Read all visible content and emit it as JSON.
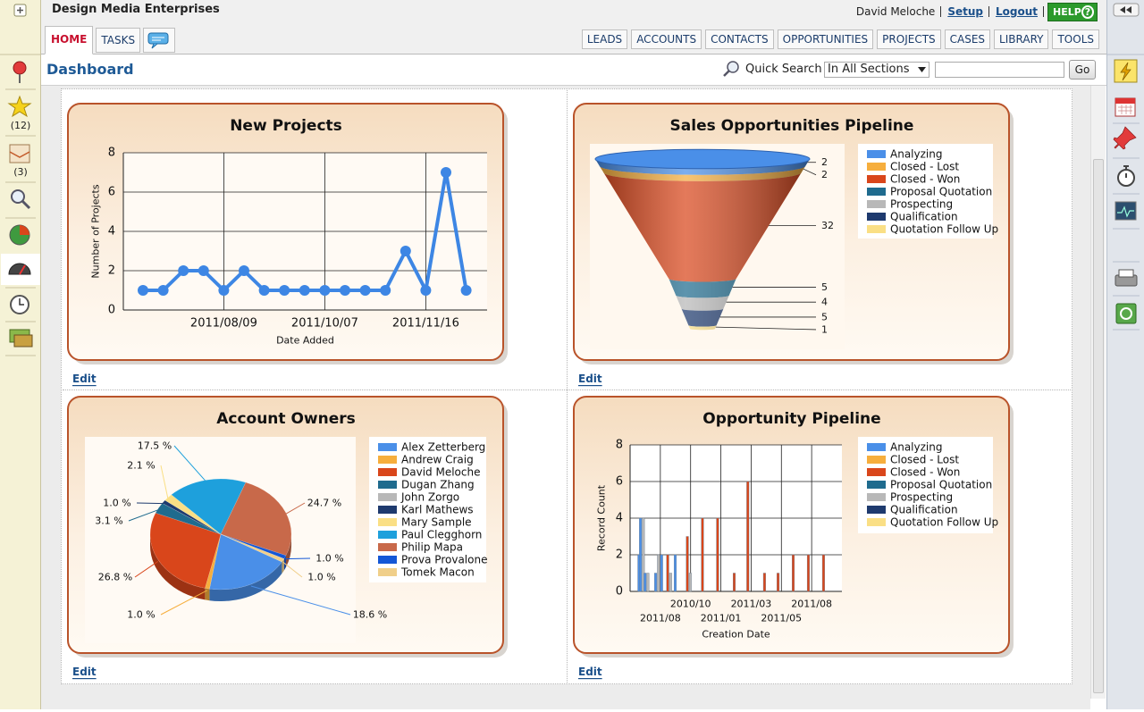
{
  "header": {
    "company": "Design Media Enterprises",
    "user": "David Meloche",
    "links": [
      "Setup",
      "Logout"
    ],
    "help": "HELP",
    "help_icon": "?"
  },
  "tabs": {
    "left": [
      "HOME",
      "TASKS"
    ],
    "right": [
      "LEADS",
      "ACCOUNTS",
      "CONTACTS",
      "OPPORTUNITIES",
      "PROJECTS",
      "CASES",
      "LIBRARY",
      "TOOLS"
    ]
  },
  "sidebar": {
    "badges": [
      "(12)",
      "(3)"
    ]
  },
  "page": {
    "title": "Dashboard",
    "search_label": "Quick Search",
    "search_scope": "In All Sections",
    "search_button": "Go"
  },
  "widgets": [
    {
      "edit": "Edit",
      "chart_data": {
        "type": "line",
        "title": "New Projects",
        "y_label": "Number of Projects",
        "x_label": "Date Added",
        "categories": [
          null,
          null,
          null,
          null,
          "2011/08/09",
          null,
          null,
          null,
          null,
          "2011/10/07",
          null,
          null,
          null,
          null,
          "2011/11/16",
          null,
          null
        ],
        "values": [
          1,
          1,
          2,
          2,
          1,
          2,
          1,
          1,
          1,
          1,
          1,
          1,
          1,
          3,
          1,
          7,
          1
        ],
        "color": "#3d86e4",
        "ylim": [
          0,
          8
        ],
        "yticks": [
          0,
          2,
          4,
          6,
          8
        ],
        "grid": true
      }
    },
    {
      "edit": "Edit",
      "chart_data": {
        "type": "funnel",
        "title": "Sales Opportunities Pipeline",
        "categories": [
          "Analyzing",
          "Closed - Lost",
          "Closed - Won",
          "Proposal Quotation",
          "Prospecting",
          "Qualification",
          "Quotation Follow Up"
        ],
        "values": [
          2,
          2,
          32,
          5,
          4,
          5,
          1
        ],
        "colors": [
          "#4a8fe8",
          "#f6ae3d",
          "#d9461b",
          "#1f6b8e",
          "#b8b8b8",
          "#1e3a6e",
          "#fadf85"
        ]
      }
    },
    {
      "edit": "Edit",
      "chart_data": {
        "type": "pie",
        "title": "Account Owners",
        "categories": [
          "Alex Zetterberg",
          "Andrew Craig",
          "David Meloche",
          "Dugan Zhang",
          "John Zorgo",
          "Karl Mathews",
          "Mary Sample",
          "Paul Clegghorn",
          "Philip Mapa",
          "Prova Provalone",
          "Tomek Macon"
        ],
        "values": [
          18.6,
          1.0,
          26.8,
          3.1,
          0,
          1.0,
          2.1,
          17.5,
          24.7,
          1.0,
          1.0
        ],
        "value_labels": [
          "18.6 %",
          "1.0 %",
          "26.8 %",
          "3.1 %",
          null,
          "1.0 %",
          "2.1 %",
          "17.5 %",
          "24.7 %",
          "1.0 %",
          "1.0 %"
        ],
        "colors": [
          "#4a8fe8",
          "#f6ae3d",
          "#d9461b",
          "#1f6b8e",
          "#b8b8b8",
          "#1e3a6e",
          "#fadf85",
          "#1ea0dc",
          "#c8694a",
          "#1457d6",
          "#f0cf8a"
        ]
      }
    },
    {
      "edit": "Edit",
      "chart_data": {
        "type": "bar",
        "title": "Opportunity Pipeline",
        "y_label": "Record Count",
        "x_label": "Creation Date",
        "x": [
          0.3,
          0.4,
          0.55,
          0.9,
          1.05,
          1.3,
          1.5,
          1.95,
          2.4,
          2.9,
          3.45,
          3.9,
          4.45,
          4.9,
          5.4,
          5.9,
          6.4
        ],
        "series": [
          {
            "name": "Analyzing",
            "color": "#4a8fe8",
            "values": [
              2,
              4,
              1,
              1,
              2,
              null,
              2,
              null,
              null,
              null,
              null,
              null,
              null,
              null,
              null,
              null,
              null
            ]
          },
          {
            "name": "Closed - Lost",
            "color": "#f6ae3d",
            "values": [
              null,
              null,
              null,
              null,
              null,
              null,
              null,
              null,
              null,
              null,
              null,
              null,
              null,
              null,
              null,
              null,
              null
            ]
          },
          {
            "name": "Closed - Won",
            "color": "#d9461b",
            "values": [
              null,
              null,
              null,
              null,
              null,
              2,
              null,
              3,
              4,
              4,
              1,
              6,
              1,
              1,
              2,
              2,
              2
            ]
          },
          {
            "name": "Proposal Quotation",
            "color": "#1f6b8e",
            "values": [
              null,
              null,
              null,
              null,
              null,
              null,
              null,
              null,
              null,
              null,
              null,
              null,
              null,
              null,
              null,
              null,
              null
            ]
          },
          {
            "name": "Prospecting",
            "color": "#b8b8b8",
            "values": [
              null,
              4,
              1,
              2,
              null,
              1,
              null,
              1,
              null,
              null,
              null,
              null,
              null,
              null,
              null,
              null,
              null
            ]
          },
          {
            "name": "Qualification",
            "color": "#1e3a6e",
            "values": [
              null,
              null,
              null,
              null,
              null,
              null,
              null,
              null,
              null,
              null,
              null,
              null,
              null,
              null,
              null,
              null,
              null
            ]
          },
          {
            "name": "Quotation Follow Up",
            "color": "#fadf85",
            "values": [
              null,
              null,
              null,
              null,
              null,
              null,
              null,
              null,
              null,
              null,
              null,
              null,
              null,
              null,
              null,
              null,
              null
            ]
          }
        ],
        "xlim": [
          0,
          7
        ],
        "xticks": [
          {
            "value": 1,
            "label": "2011/08"
          },
          {
            "value": 2,
            "label": "2010/10"
          },
          {
            "value": 3,
            "label": "2011/01"
          },
          {
            "value": 4,
            "label": "2011/03"
          },
          {
            "value": 5,
            "label": "2011/05"
          },
          {
            "value": 6,
            "label": "2011/08"
          }
        ],
        "ylim": [
          0,
          8
        ],
        "yticks": [
          0,
          2,
          4,
          6,
          8
        ],
        "grid": true
      }
    }
  ]
}
